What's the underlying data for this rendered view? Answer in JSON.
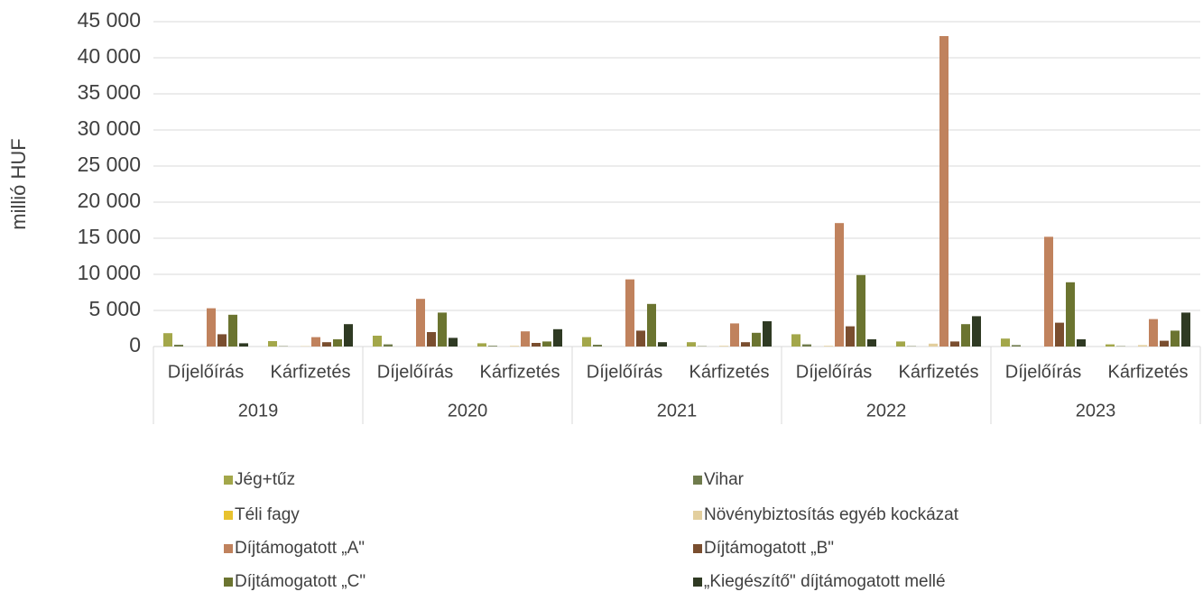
{
  "chart_data": {
    "type": "bar",
    "y_label": "millió HUF",
    "category_groups": [
      "2019",
      "2020",
      "2021",
      "2022",
      "2023"
    ],
    "categories": [
      "Díjelőírás",
      "Kárfizetés",
      "Díjelőírás",
      "Kárfizetés",
      "Díjelőírás",
      "Kárfizetés",
      "Díjelőírás",
      "Kárfizetés",
      "Díjelőírás",
      "Kárfizetés"
    ],
    "series": [
      {
        "name": "Jég+tűz",
        "color": "#a3a74a",
        "values": [
          1850,
          750,
          1500,
          450,
          1300,
          600,
          1700,
          700,
          1100,
          300
        ]
      },
      {
        "name": "Vihar",
        "color": "#6f7b4c",
        "values": [
          250,
          50,
          300,
          100,
          250,
          50,
          300,
          50,
          200,
          50
        ]
      },
      {
        "name": "Téli fagy",
        "color": "#e8c22e",
        "values": [
          0,
          0,
          0,
          0,
          0,
          0,
          0,
          0,
          0,
          0
        ]
      },
      {
        "name": "Növénybiztosítás egyéb kockázat",
        "color": "#e3cf9e",
        "values": [
          0,
          50,
          0,
          100,
          0,
          100,
          100,
          400,
          0,
          200
        ]
      },
      {
        "name": "Díjtámogatott „A\"",
        "color": "#c0825d",
        "values": [
          5300,
          1300,
          6600,
          2100,
          9300,
          3200,
          17100,
          43000,
          15200,
          3800
        ]
      },
      {
        "name": "Díjtámogatott „B\"",
        "color": "#7a4e2f",
        "values": [
          1700,
          600,
          2000,
          500,
          2200,
          600,
          2800,
          700,
          3300,
          800
        ]
      },
      {
        "name": "Díjtámogatott „C\"",
        "color": "#6b7430",
        "values": [
          4400,
          1000,
          4700,
          700,
          5900,
          1900,
          9900,
          3100,
          8900,
          2200
        ]
      },
      {
        "name": "„Kiegészítő\" díjtámogatott mellé",
        "color": "#2f3a23",
        "values": [
          450,
          3100,
          1200,
          2400,
          600,
          3500,
          1000,
          4200,
          1000,
          4700
        ]
      }
    ],
    "ylim": [
      0,
      45000
    ],
    "yticks": [
      0,
      {
        "value": 5000,
        "label": "5 000"
      },
      {
        "value": 10000,
        "label": "10 000"
      },
      {
        "value": 15000,
        "label": "15 000"
      },
      {
        "value": 20000,
        "label": "20 000"
      },
      {
        "value": 25000,
        "label": "25 000"
      },
      {
        "value": 30000,
        "label": "30 000"
      },
      {
        "value": 35000,
        "label": "35 000"
      },
      {
        "value": 40000,
        "label": "40 000"
      },
      {
        "value": 45000,
        "label": "45 000"
      }
    ],
    "grid": true
  }
}
